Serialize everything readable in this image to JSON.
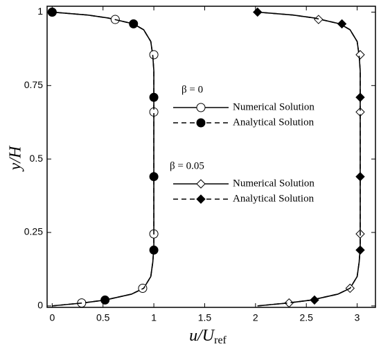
{
  "chart_data": {
    "type": "line",
    "x_label": {
      "main": "u/U",
      "subscript": "ref"
    },
    "y_label": "y/H",
    "xlim": [
      -0.05,
      3.18
    ],
    "ylim": [
      -0.005,
      1.02
    ],
    "xticks": [
      0,
      0.5,
      1,
      1.5,
      2,
      2.5,
      3
    ],
    "yticks": [
      0,
      0.25,
      0.5,
      0.75,
      1
    ],
    "groups": [
      {
        "title": "β = 0",
        "series": [
          {
            "name": "Numerical Solution",
            "color": "#000000",
            "line_style": "solid",
            "marker": "circle",
            "marker_fill": "none",
            "line": {
              "x": [
                0,
                0.15,
                0.3,
                0.52,
                0.78,
                0.9,
                0.97,
                0.99,
                1.0,
                1.0,
                1.0,
                1.0,
                1.0,
                0.99,
                0.97,
                0.9,
                0.8,
                0.55,
                0.35,
                0
              ],
              "y": [
                0,
                0.005,
                0.01,
                0.02,
                0.04,
                0.06,
                0.1,
                0.15,
                0.2,
                0.3,
                0.5,
                0.7,
                0.8,
                0.85,
                0.9,
                0.94,
                0.96,
                0.98,
                0.99,
                1.0
              ]
            },
            "markers": {
              "x": [
                0,
                0.62,
                1.0,
                1.0,
                1.0,
                0.89,
                0.29
              ],
              "y": [
                1.0,
                0.975,
                0.855,
                0.66,
                0.245,
                0.06,
                0.01
              ]
            }
          },
          {
            "name": "Analytical Solution",
            "color": "#000000",
            "line_style": "dashed",
            "marker": "circle",
            "marker_fill": "filled",
            "line": {
              "x": [
                0,
                0.15,
                0.3,
                0.52,
                0.78,
                0.9,
                0.97,
                0.99,
                1.0,
                1.0,
                1.0,
                1.0,
                1.0,
                0.99,
                0.97,
                0.9,
                0.8,
                0.55,
                0.35,
                0
              ],
              "y": [
                0,
                0.005,
                0.01,
                0.02,
                0.04,
                0.06,
                0.1,
                0.15,
                0.2,
                0.3,
                0.5,
                0.7,
                0.8,
                0.85,
                0.9,
                0.94,
                0.96,
                0.98,
                0.99,
                1.0
              ]
            },
            "markers": {
              "x": [
                0,
                0.8,
                1.0,
                1.0,
                1.0,
                0.52
              ],
              "y": [
                1.0,
                0.96,
                0.71,
                0.44,
                0.19,
                0.02
              ]
            }
          }
        ]
      },
      {
        "title": "β = 0.05",
        "series": [
          {
            "name": "Numerical Solution",
            "color": "#000000",
            "line_style": "solid",
            "marker": "diamond",
            "marker_fill": "none",
            "line": {
              "x": [
                2.02,
                2.17,
                2.32,
                2.55,
                2.81,
                2.93,
                3.0,
                3.02,
                3.03,
                3.03,
                3.03,
                3.03,
                3.03,
                3.02,
                3.0,
                2.93,
                2.83,
                2.58,
                2.37,
                2.02
              ],
              "y": [
                0,
                0.005,
                0.01,
                0.02,
                0.04,
                0.06,
                0.1,
                0.15,
                0.2,
                0.3,
                0.5,
                0.7,
                0.8,
                0.85,
                0.9,
                0.94,
                0.96,
                0.98,
                0.99,
                1.0
              ]
            },
            "markers": {
              "x": [
                2.62,
                3.03,
                3.03,
                3.03,
                2.93,
                2.33
              ],
              "y": [
                0.975,
                0.855,
                0.66,
                0.245,
                0.06,
                0.01
              ]
            }
          },
          {
            "name": "Analytical Solution",
            "color": "#000000",
            "line_style": "dashed",
            "marker": "diamond",
            "marker_fill": "filled",
            "line": {
              "x": [
                2.02,
                2.17,
                2.32,
                2.55,
                2.81,
                2.93,
                3.0,
                3.02,
                3.03,
                3.03,
                3.03,
                3.03,
                3.03,
                3.02,
                3.0,
                2.93,
                2.83,
                2.58,
                2.37,
                2.02
              ],
              "y": [
                0,
                0.005,
                0.01,
                0.02,
                0.04,
                0.06,
                0.1,
                0.15,
                0.2,
                0.3,
                0.5,
                0.7,
                0.8,
                0.85,
                0.9,
                0.94,
                0.96,
                0.98,
                0.99,
                1.0
              ]
            },
            "markers": {
              "x": [
                2.02,
                2.85,
                3.03,
                3.03,
                3.03,
                2.58
              ],
              "y": [
                1.0,
                0.96,
                0.71,
                0.44,
                0.19,
                0.02
              ]
            }
          }
        ]
      }
    ]
  }
}
